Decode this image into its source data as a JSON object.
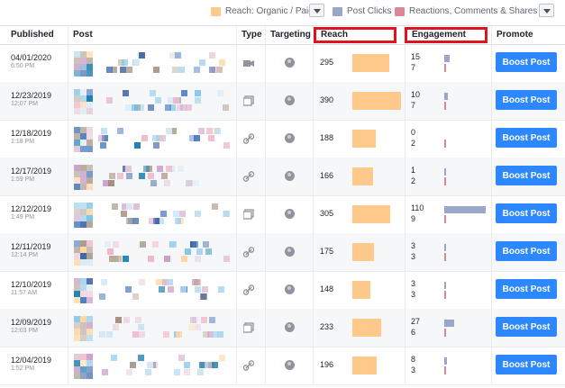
{
  "legend": {
    "reach": "Reach: Organic / Paid",
    "post_clicks": "Post Clicks",
    "reactions": "Reactions, Comments & Shares",
    "colors": {
      "reach": "#ffc98b",
      "post_clicks": "#9aa7c8",
      "reactions": "#d9879b"
    }
  },
  "columns": {
    "published": "Published",
    "post": "Post",
    "type": "Type",
    "targeting": "Targeting",
    "reach": "Reach",
    "engagement": "Engagement",
    "promote": "Promote"
  },
  "rows": [
    {
      "date": "04/01/2020",
      "time": "6:50 PM",
      "type": "video",
      "reach": 295,
      "clicks": 15,
      "reactions": 7,
      "boost": "Boost Post"
    },
    {
      "date": "12/23/2019",
      "time": "12:07 PM",
      "type": "photo",
      "reach": 390,
      "clicks": 10,
      "reactions": 7,
      "boost": "Boost Post"
    },
    {
      "date": "12/18/2019",
      "time": "1:18 PM",
      "type": "link",
      "reach": 188,
      "clicks": 0,
      "reactions": 2,
      "boost": "Boost Post"
    },
    {
      "date": "12/17/2019",
      "time": "1:59 PM",
      "type": "link",
      "reach": 166,
      "clicks": 1,
      "reactions": 2,
      "boost": "Boost Post"
    },
    {
      "date": "12/12/2019",
      "time": "1:49 PM",
      "type": "photo",
      "reach": 305,
      "clicks": 110,
      "reactions": 9,
      "boost": "Boost Post"
    },
    {
      "date": "12/11/2019",
      "time": "12:14 PM",
      "type": "link",
      "reach": 175,
      "clicks": 3,
      "reactions": 3,
      "boost": "Boost Post"
    },
    {
      "date": "12/10/2019",
      "time": "11:57 AM",
      "type": "link",
      "reach": 148,
      "clicks": 3,
      "reactions": 3,
      "boost": "Boost Post"
    },
    {
      "date": "12/09/2019",
      "time": "12:03 PM",
      "type": "photo",
      "reach": 233,
      "clicks": 27,
      "reactions": 6,
      "boost": "Boost Post"
    },
    {
      "date": "12/04/2019",
      "time": "1:52 PM",
      "type": "link",
      "reach": 196,
      "clicks": 8,
      "reactions": 3,
      "boost": "Boost Post"
    }
  ]
}
